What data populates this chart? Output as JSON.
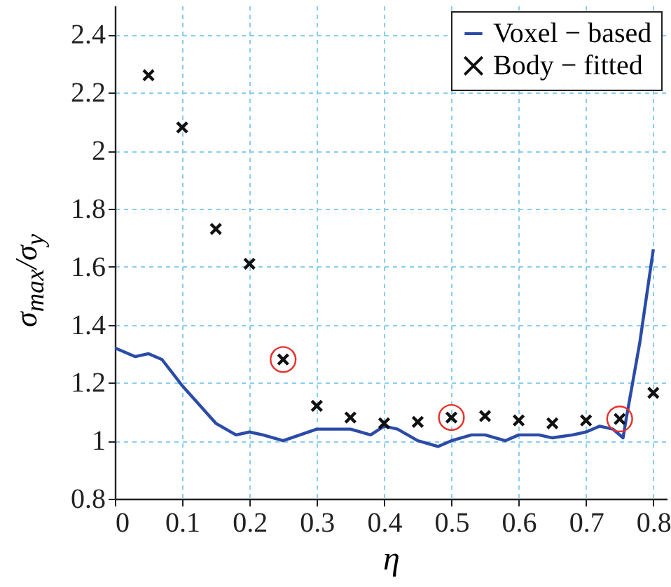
{
  "chart_data": {
    "type": "line",
    "xlabel": "η",
    "ylabel": "σ$_{max}$/σ$_{y}$",
    "xlim": [
      0,
      0.82
    ],
    "ylim": [
      0.8,
      2.5
    ],
    "xticks": [
      0,
      0.1,
      0.2,
      0.3,
      0.4,
      0.5,
      0.6,
      0.7,
      0.8
    ],
    "yticks": [
      0.8,
      1,
      1.2,
      1.4,
      1.6,
      1.8,
      2,
      2.2,
      2.4
    ],
    "grid": true,
    "legend": "top right",
    "series": [
      {
        "name": "Voxel − based",
        "color": "#2b4ba8",
        "marker": "none",
        "line_style": "solid",
        "x": [
          0,
          0.03,
          0.05,
          0.07,
          0.1,
          0.15,
          0.18,
          0.2,
          0.22,
          0.25,
          0.3,
          0.35,
          0.38,
          0.4,
          0.42,
          0.45,
          0.48,
          0.5,
          0.53,
          0.55,
          0.58,
          0.6,
          0.63,
          0.65,
          0.68,
          0.7,
          0.72,
          0.74,
          0.755,
          0.76,
          0.78,
          0.8
        ],
        "values": [
          1.32,
          1.29,
          1.3,
          1.28,
          1.19,
          1.06,
          1.02,
          1.03,
          1.02,
          1.0,
          1.04,
          1.04,
          1.02,
          1.05,
          1.04,
          1.0,
          0.98,
          1.0,
          1.02,
          1.02,
          1.0,
          1.02,
          1.02,
          1.01,
          1.02,
          1.03,
          1.05,
          1.04,
          1.01,
          1.08,
          1.34,
          1.66
        ]
      },
      {
        "name": "Body − fitted",
        "type": "scatter",
        "color": "#111111",
        "marker": "cross",
        "x": [
          0.05,
          0.1,
          0.15,
          0.2,
          0.25,
          0.3,
          0.35,
          0.4,
          0.45,
          0.5,
          0.55,
          0.6,
          0.65,
          0.7,
          0.75,
          0.8
        ],
        "values": [
          2.26,
          2.08,
          1.73,
          1.61,
          1.28,
          1.12,
          1.08,
          1.06,
          1.065,
          1.08,
          1.085,
          1.07,
          1.06,
          1.07,
          1.075,
          1.165
        ]
      },
      {
        "type": "scatter",
        "color": "#e8302a",
        "marker": "circle",
        "x": [
          0.25,
          0.5,
          0.75
        ],
        "values": [
          1.28,
          1.08,
          1.075
        ]
      }
    ]
  }
}
